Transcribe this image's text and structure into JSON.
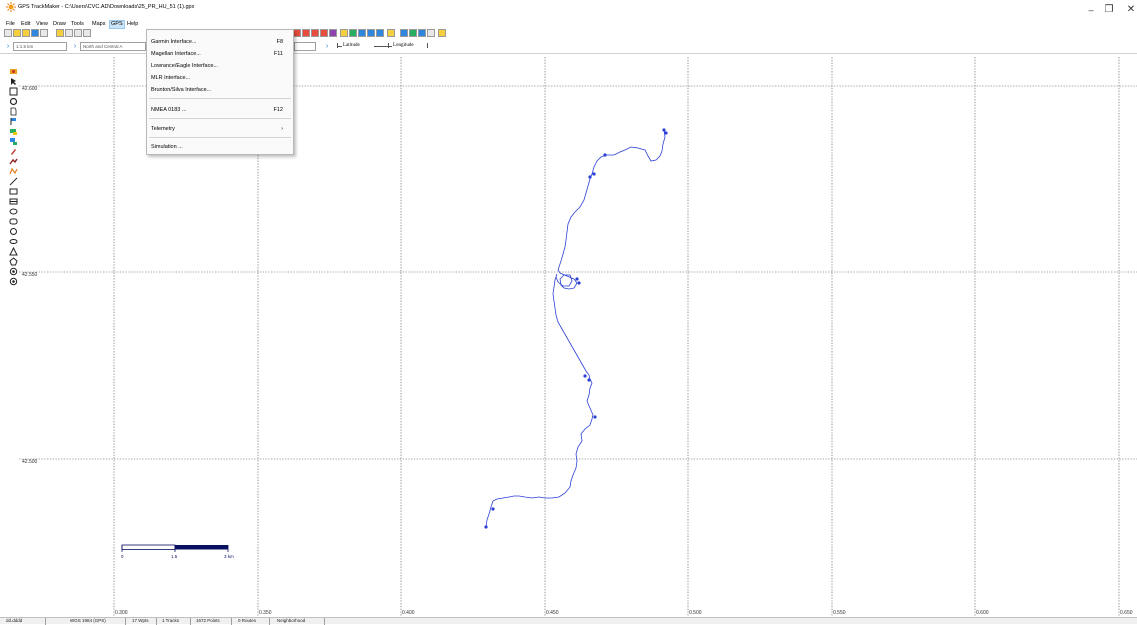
{
  "window": {
    "title": "GPS TrackMaker - C:\\Users\\CVC.AD\\Downloads\\25_PR_HU_51 (1).gpx",
    "minimize_glyph": "–",
    "maximize_glyph": "❐",
    "close_glyph": "✕"
  },
  "menubar": {
    "file": "File",
    "edit": "Edit",
    "view": "View",
    "draw": "Draw",
    "tools": "Tools",
    "maps": "Maps",
    "gps": "GPS",
    "help": "Help"
  },
  "toolbar": {
    "scale_value": "1:1.5 km",
    "map_region_value": "North and Central A",
    "arrow_glyph": "›",
    "latitude_label": "Latitude",
    "longitude_label": "Longitude"
  },
  "gps_menu": {
    "garmin": {
      "label": "Garmin Interface...",
      "key": "F8"
    },
    "magellan": {
      "label": "Magellan Interface...",
      "key": "F11"
    },
    "lowrance": {
      "label": "Lowrance/Eagle Interface..."
    },
    "mlr": {
      "label": "MLR Interface..."
    },
    "brunton": {
      "label": "Brunton/Silva Interface..."
    },
    "nmea": {
      "label": "NMEA 0183 ...",
      "key": "F12"
    },
    "telemetry": {
      "label": "Telemetry",
      "arrow": "›"
    },
    "simulation": {
      "label": "Simulation ..."
    }
  },
  "map": {
    "lat_labels": [
      "42.600",
      "42.550",
      "42.500"
    ],
    "lon_labels": [
      "0.300",
      "0.350",
      "0.400",
      "0.450",
      "0.500",
      "0.550",
      "0.600",
      "0.650"
    ],
    "scale_bar": {
      "zero": "0",
      "mid": "1.5",
      "end": "3 km"
    },
    "track_color": "#2b3fd6"
  },
  "statusbar": {
    "format": "dd.dddd",
    "datum": "WGS 1984 (GPS)",
    "waypoints": "17 Wpts",
    "tracks": "1 Tracks",
    "points": "1672 Points",
    "routes": "0 Routes",
    "mode": "Neighborhood"
  }
}
